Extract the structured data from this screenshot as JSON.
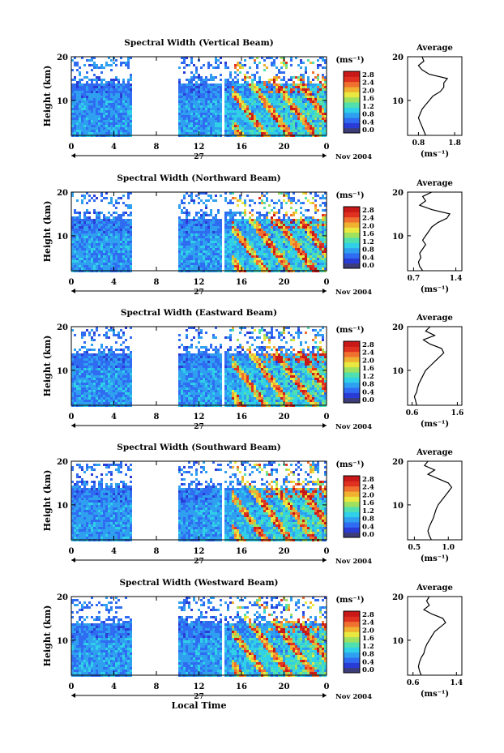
{
  "colorbar": {
    "unit": "(ms⁻¹)",
    "ticks": [
      "2.8",
      "2.4",
      "2.0",
      "1.6",
      "1.2",
      "0.8",
      "0.4",
      "0.0"
    ],
    "colors": [
      "#3c3c78",
      "#2a3cd6",
      "#2f6cf2",
      "#2fa0f0",
      "#2fd0e8",
      "#50e0b0",
      "#9ee060",
      "#e8e840",
      "#f0b030",
      "#f07030",
      "#e03020",
      "#c81818"
    ]
  },
  "x_axis": {
    "ticks": [
      "0",
      "4",
      "8",
      "12",
      "16",
      "20",
      "0"
    ],
    "day_label": "27",
    "date_label": "Nov 2004",
    "xlabel": "Local Time"
  },
  "y_axis": {
    "label": "Height (km)",
    "ticks": [
      "20",
      "10"
    ]
  },
  "avg_common": {
    "title": "Average",
    "xlabel": "(ms⁻¹)"
  },
  "chart_data": [
    {
      "type": "heatmap",
      "title": "Spectral Width (Vertical Beam)",
      "ylabel": "Height (km)",
      "xlabel": "",
      "zlabel": "(ms⁻¹)",
      "xlim": [
        0,
        24
      ],
      "ylim": [
        2,
        20
      ],
      "zlim": [
        0.0,
        2.8
      ],
      "data_gap_hours": [
        [
          5.5,
          10
        ],
        [
          14,
          14.3
        ]
      ],
      "average_profile": {
        "x_ticks": [
          "0.8",
          "1.8"
        ],
        "xlim": [
          0.5,
          2.0
        ],
        "heights": [
          2,
          3,
          4,
          5,
          6,
          7,
          8,
          9,
          10,
          11,
          12,
          13,
          14,
          15,
          16,
          17,
          18,
          19,
          20
        ],
        "values": [
          1.0,
          0.95,
          0.9,
          0.85,
          0.8,
          0.85,
          0.9,
          1.0,
          1.1,
          1.2,
          1.4,
          1.5,
          1.5,
          1.6,
          1.1,
          0.9,
          0.8,
          0.95,
          0.9
        ]
      }
    },
    {
      "type": "heatmap",
      "title": "Spectral Width (Northward Beam)",
      "ylabel": "Height (km)",
      "xlabel": "",
      "zlabel": "(ms⁻¹)",
      "xlim": [
        0,
        24
      ],
      "ylim": [
        2,
        20
      ],
      "zlim": [
        0.0,
        2.8
      ],
      "data_gap_hours": [
        [
          5.5,
          10
        ],
        [
          14,
          14.3
        ]
      ],
      "average_profile": {
        "x_ticks": [
          "0.7",
          "1.4"
        ],
        "xlim": [
          0.6,
          1.5
        ],
        "heights": [
          2,
          3,
          4,
          5,
          6,
          7,
          8,
          9,
          10,
          11,
          12,
          13,
          14,
          15,
          16,
          17,
          18,
          19,
          20
        ],
        "values": [
          0.85,
          0.8,
          0.78,
          0.82,
          0.8,
          0.85,
          0.9,
          0.85,
          0.9,
          0.95,
          1.0,
          1.1,
          1.25,
          1.3,
          1.0,
          0.8,
          0.9,
          0.85,
          1.0
        ]
      }
    },
    {
      "type": "heatmap",
      "title": "Spectral Width (Eastward Beam)",
      "ylabel": "Height (km)",
      "xlabel": "",
      "zlabel": "(ms⁻¹)",
      "xlim": [
        0,
        24
      ],
      "ylim": [
        2,
        20
      ],
      "zlim": [
        0.0,
        2.8
      ],
      "data_gap_hours": [
        [
          5.5,
          10
        ],
        [
          14,
          14.3
        ]
      ],
      "average_profile": {
        "x_ticks": [
          "0.6",
          "1.6"
        ],
        "xlim": [
          0.5,
          1.7
        ],
        "heights": [
          2,
          3,
          4,
          5,
          6,
          7,
          8,
          9,
          10,
          11,
          12,
          13,
          14,
          15,
          16,
          17,
          18,
          19,
          20
        ],
        "values": [
          0.7,
          0.68,
          0.65,
          0.7,
          0.72,
          0.75,
          0.8,
          0.85,
          0.9,
          1.0,
          1.1,
          1.2,
          1.3,
          1.25,
          1.0,
          0.85,
          1.1,
          0.9,
          1.0
        ]
      }
    },
    {
      "type": "heatmap",
      "title": "Spectral Width (Southward Beam)",
      "ylabel": "Height (km)",
      "xlabel": "",
      "zlabel": "(ms⁻¹)",
      "xlim": [
        0,
        24
      ],
      "ylim": [
        2,
        20
      ],
      "zlim": [
        0.0,
        2.8
      ],
      "data_gap_hours": [
        [
          5.5,
          10
        ],
        [
          14,
          14.3
        ]
      ],
      "average_profile": {
        "x_ticks": [
          "0.5",
          "1.0"
        ],
        "xlim": [
          0.4,
          1.2
        ],
        "heights": [
          2,
          3,
          4,
          5,
          6,
          7,
          8,
          9,
          10,
          11,
          12,
          13,
          14,
          15,
          16,
          17,
          18,
          19,
          20
        ],
        "values": [
          0.75,
          0.72,
          0.7,
          0.72,
          0.75,
          0.78,
          0.8,
          0.82,
          0.85,
          0.9,
          0.95,
          1.0,
          1.05,
          1.0,
          0.85,
          0.7,
          0.8,
          0.65,
          0.7
        ]
      }
    },
    {
      "type": "heatmap",
      "title": "Spectral Width (Westward Beam)",
      "ylabel": "Height (km)",
      "xlabel": "Local Time",
      "zlabel": "(ms⁻¹)",
      "xlim": [
        0,
        24
      ],
      "ylim": [
        2,
        20
      ],
      "zlim": [
        0.0,
        2.8
      ],
      "data_gap_hours": [
        [
          5.5,
          10
        ],
        [
          14,
          14.3
        ]
      ],
      "average_profile": {
        "x_ticks": [
          "0.6",
          "1.4"
        ],
        "xlim": [
          0.5,
          1.5
        ],
        "heights": [
          2,
          3,
          4,
          5,
          6,
          7,
          8,
          9,
          10,
          11,
          12,
          13,
          14,
          15,
          16,
          17,
          18,
          19,
          20
        ],
        "values": [
          0.75,
          0.72,
          0.7,
          0.72,
          0.75,
          0.8,
          0.82,
          0.85,
          0.9,
          0.95,
          1.0,
          1.1,
          1.2,
          1.15,
          0.95,
          0.8,
          0.9,
          0.85,
          0.9
        ]
      }
    }
  ]
}
